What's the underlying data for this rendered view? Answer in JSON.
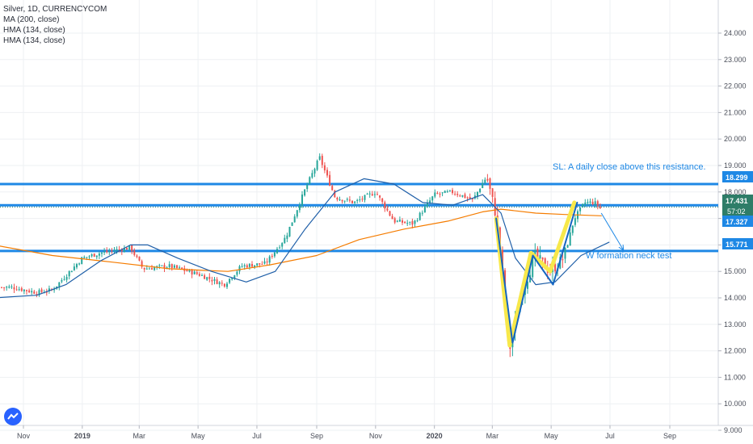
{
  "legend": {
    "symbol_line": "Silver, 1D, CURRENCYCOM",
    "ma_line": "MA (200, close)",
    "hma_line_1": "HMA (134, close)",
    "hma_line_2": "HMA (134, close)"
  },
  "annotations": {
    "sl_text": "SL:  A daily close above this resistance.",
    "w_text": "W formation neck test"
  },
  "price_labels": {
    "resistance": "18.299",
    "last_price": "17.431",
    "countdown": "57:02",
    "current": "17.327",
    "neck": "15.771"
  },
  "colors": {
    "up": "#26a69a",
    "down": "#ef5350",
    "ma": "#f57c00",
    "hma": "#1f5fa8",
    "hlines": "#1e88e5",
    "highlight_yellow": "#f7e84a",
    "highlight_blue": "#1565c0",
    "last_price_bg": "#2e7d68",
    "current_bg": "#1e88e5",
    "neck_bg": "#1e88e5"
  },
  "chart_data": {
    "type": "candlestick",
    "ylim": [
      9.0,
      24.8
    ],
    "y_ticks": [
      "9.000",
      "10.000",
      "11.000",
      "12.000",
      "13.000",
      "14.000",
      "15.000",
      "16.000",
      "17.000",
      "18.000",
      "19.000",
      "20.000",
      "21.000",
      "22.000",
      "23.000",
      "24.000"
    ],
    "x_ticks": [
      "Nov",
      "2019",
      "Mar",
      "May",
      "Jul",
      "Sep",
      "Nov",
      "2020",
      "Mar",
      "May",
      "Jul",
      "Sep"
    ],
    "price_path": [
      {
        "x": "2018-10-20",
        "price": 14.4
      },
      {
        "x": "2018-11-15",
        "price": 14.2
      },
      {
        "x": "2018-12-01",
        "price": 14.3
      },
      {
        "x": "2019-01-01",
        "price": 15.5
      },
      {
        "x": "2019-01-20",
        "price": 15.7
      },
      {
        "x": "2019-02-20",
        "price": 15.9
      },
      {
        "x": "2019-03-05",
        "price": 15.1
      },
      {
        "x": "2019-04-01",
        "price": 15.2
      },
      {
        "x": "2019-05-01",
        "price": 14.9
      },
      {
        "x": "2019-05-28",
        "price": 14.5
      },
      {
        "x": "2019-06-15",
        "price": 15.2
      },
      {
        "x": "2019-07-10",
        "price": 15.3
      },
      {
        "x": "2019-07-31",
        "price": 16.3
      },
      {
        "x": "2019-08-20",
        "price": 18.1
      },
      {
        "x": "2019-09-04",
        "price": 19.3
      },
      {
        "x": "2019-09-20",
        "price": 17.8
      },
      {
        "x": "2019-10-10",
        "price": 17.6
      },
      {
        "x": "2019-11-01",
        "price": 18.0
      },
      {
        "x": "2019-11-20",
        "price": 16.9
      },
      {
        "x": "2019-12-10",
        "price": 16.8
      },
      {
        "x": "2020-01-01",
        "price": 17.9
      },
      {
        "x": "2020-01-20",
        "price": 18.0
      },
      {
        "x": "2020-02-10",
        "price": 17.7
      },
      {
        "x": "2020-02-24",
        "price": 18.6
      },
      {
        "x": "2020-03-05",
        "price": 17.1
      },
      {
        "x": "2020-03-12",
        "price": 14.8
      },
      {
        "x": "2020-03-18",
        "price": 11.9
      },
      {
        "x": "2020-03-30",
        "price": 14.0
      },
      {
        "x": "2020-04-14",
        "price": 15.6
      },
      {
        "x": "2020-04-30",
        "price": 15.0
      },
      {
        "x": "2020-05-14",
        "price": 15.5
      },
      {
        "x": "2020-05-25",
        "price": 17.0
      },
      {
        "x": "2020-06-05",
        "price": 17.6
      },
      {
        "x": "2020-06-15",
        "price": 17.6
      },
      {
        "x": "2020-06-22",
        "price": 17.35
      }
    ],
    "ma200": [
      {
        "x": "2018-10-01",
        "y": 16.0
      },
      {
        "x": "2018-12-01",
        "y": 15.6
      },
      {
        "x": "2019-02-01",
        "y": 15.35
      },
      {
        "x": "2019-04-01",
        "y": 15.1
      },
      {
        "x": "2019-06-01",
        "y": 15.0
      },
      {
        "x": "2019-07-15",
        "y": 15.25
      },
      {
        "x": "2019-09-01",
        "y": 15.6
      },
      {
        "x": "2019-10-15",
        "y": 16.2
      },
      {
        "x": "2019-12-01",
        "y": 16.6
      },
      {
        "x": "2020-01-15",
        "y": 16.9
      },
      {
        "x": "2020-02-20",
        "y": 17.25
      },
      {
        "x": "2020-03-10",
        "y": 17.35
      },
      {
        "x": "2020-04-15",
        "y": 17.2
      },
      {
        "x": "2020-05-15",
        "y": 17.15
      },
      {
        "x": "2020-06-22",
        "y": 17.1
      }
    ],
    "hma134": [
      {
        "x": "2018-10-01",
        "y": 14.0
      },
      {
        "x": "2018-11-15",
        "y": 14.1
      },
      {
        "x": "2018-12-15",
        "y": 14.5
      },
      {
        "x": "2019-01-20",
        "y": 15.4
      },
      {
        "x": "2019-02-20",
        "y": 16.0
      },
      {
        "x": "2019-03-10",
        "y": 16.0
      },
      {
        "x": "2019-04-10",
        "y": 15.5
      },
      {
        "x": "2019-05-15",
        "y": 15.0
      },
      {
        "x": "2019-06-20",
        "y": 14.6
      },
      {
        "x": "2019-07-20",
        "y": 15.0
      },
      {
        "x": "2019-08-20",
        "y": 16.6
      },
      {
        "x": "2019-09-20",
        "y": 18.0
      },
      {
        "x": "2019-10-20",
        "y": 18.5
      },
      {
        "x": "2019-11-20",
        "y": 18.3
      },
      {
        "x": "2019-12-20",
        "y": 17.6
      },
      {
        "x": "2020-01-20",
        "y": 17.5
      },
      {
        "x": "2020-02-20",
        "y": 17.9
      },
      {
        "x": "2020-03-10",
        "y": 17.2
      },
      {
        "x": "2020-03-25",
        "y": 15.5
      },
      {
        "x": "2020-04-15",
        "y": 14.5
      },
      {
        "x": "2020-05-05",
        "y": 14.6
      },
      {
        "x": "2020-06-01",
        "y": 15.6
      },
      {
        "x": "2020-06-30",
        "y": 16.1
      }
    ],
    "horizontal_levels": [
      18.299,
      17.5,
      15.771
    ],
    "w_pattern_yellow": [
      {
        "x": "2020-03-05",
        "y": 17.0
      },
      {
        "x": "2020-03-19",
        "y": 12.2
      },
      {
        "x": "2020-04-10",
        "y": 15.7
      },
      {
        "x": "2020-04-30",
        "y": 15.0
      },
      {
        "x": "2020-05-25",
        "y": 17.6
      }
    ],
    "w_pattern_blue": [
      {
        "x": "2020-03-05",
        "y": 17.0
      },
      {
        "x": "2020-03-22",
        "y": 12.3
      },
      {
        "x": "2020-04-12",
        "y": 15.6
      },
      {
        "x": "2020-05-03",
        "y": 14.5
      },
      {
        "x": "2020-05-28",
        "y": 17.6
      }
    ],
    "projection": [
      {
        "x": "2020-06-22",
        "y": 17.2
      },
      {
        "x": "2020-07-15",
        "y": 15.8
      }
    ]
  }
}
